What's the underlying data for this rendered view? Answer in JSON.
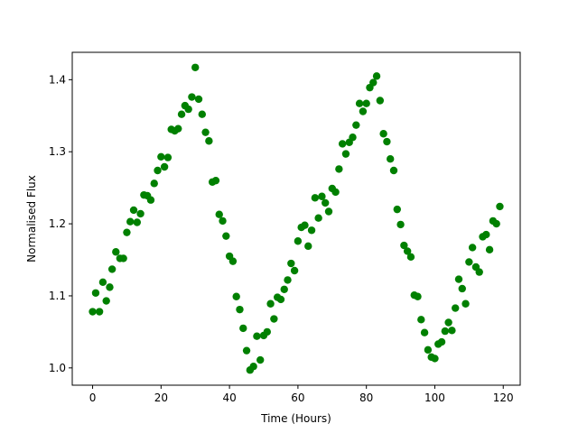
{
  "chart_data": {
    "type": "scatter",
    "title": "",
    "xlabel": "Time (Hours)",
    "ylabel": "Normalised Flux",
    "xlim": [
      -5.95,
      124.95
    ],
    "ylim": [
      0.976,
      1.438
    ],
    "xticks": [
      0,
      20,
      40,
      60,
      80,
      100,
      120
    ],
    "yticks": [
      1.0,
      1.1,
      1.2,
      1.3,
      1.4
    ],
    "ytick_labels": [
      "1.0",
      "1.1",
      "1.2",
      "1.3",
      "1.4"
    ],
    "grid": false,
    "marker_color": "#008000",
    "series": [
      {
        "points": [
          [
            0.0,
            1.078
          ],
          [
            0.9,
            1.104
          ],
          [
            2.0,
            1.078
          ],
          [
            3.0,
            1.119
          ],
          [
            4.0,
            1.093
          ],
          [
            5.0,
            1.112
          ],
          [
            5.7,
            1.137
          ],
          [
            6.8,
            1.161
          ],
          [
            8.0,
            1.152
          ],
          [
            9.0,
            1.152
          ],
          [
            10.0,
            1.188
          ],
          [
            11.0,
            1.203
          ],
          [
            12.0,
            1.219
          ],
          [
            13.0,
            1.202
          ],
          [
            14.0,
            1.214
          ],
          [
            15.0,
            1.24
          ],
          [
            16.0,
            1.239
          ],
          [
            17.0,
            1.233
          ],
          [
            18.0,
            1.256
          ],
          [
            19.0,
            1.274
          ],
          [
            20.0,
            1.293
          ],
          [
            21.0,
            1.279
          ],
          [
            22.0,
            1.292
          ],
          [
            23.0,
            1.331
          ],
          [
            24.0,
            1.329
          ],
          [
            25.0,
            1.332
          ],
          [
            26.0,
            1.352
          ],
          [
            27.0,
            1.364
          ],
          [
            28.0,
            1.359
          ],
          [
            29.0,
            1.376
          ],
          [
            30.0,
            1.417
          ],
          [
            31.0,
            1.373
          ],
          [
            32.0,
            1.352
          ],
          [
            33.0,
            1.327
          ],
          [
            34.0,
            1.315
          ],
          [
            35.0,
            1.258
          ],
          [
            36.0,
            1.26
          ],
          [
            37.0,
            1.213
          ],
          [
            38.0,
            1.204
          ],
          [
            39.0,
            1.183
          ],
          [
            40.0,
            1.155
          ],
          [
            41.0,
            1.148
          ],
          [
            42.0,
            1.099
          ],
          [
            43.0,
            1.081
          ],
          [
            44.0,
            1.055
          ],
          [
            45.0,
            1.024
          ],
          [
            46.0,
            0.997
          ],
          [
            47.0,
            1.002
          ],
          [
            48.0,
            1.044
          ],
          [
            49.0,
            1.011
          ],
          [
            50.0,
            1.045
          ],
          [
            51.0,
            1.05
          ],
          [
            52.0,
            1.089
          ],
          [
            53.0,
            1.068
          ],
          [
            54.0,
            1.098
          ],
          [
            55.0,
            1.095
          ],
          [
            56.0,
            1.109
          ],
          [
            57.0,
            1.122
          ],
          [
            58.0,
            1.145
          ],
          [
            59.0,
            1.135
          ],
          [
            60.0,
            1.176
          ],
          [
            61.0,
            1.195
          ],
          [
            62.0,
            1.198
          ],
          [
            63.0,
            1.169
          ],
          [
            64.0,
            1.191
          ],
          [
            65.0,
            1.236
          ],
          [
            66.0,
            1.208
          ],
          [
            67.0,
            1.238
          ],
          [
            68.0,
            1.229
          ],
          [
            69.0,
            1.217
          ],
          [
            70.0,
            1.249
          ],
          [
            71.0,
            1.244
          ],
          [
            72.0,
            1.276
          ],
          [
            73.0,
            1.311
          ],
          [
            74.0,
            1.297
          ],
          [
            75.0,
            1.313
          ],
          [
            76.0,
            1.32
          ],
          [
            77.0,
            1.337
          ],
          [
            78.0,
            1.367
          ],
          [
            79.0,
            1.356
          ],
          [
            80.0,
            1.367
          ],
          [
            81.0,
            1.389
          ],
          [
            82.0,
            1.396
          ],
          [
            83.0,
            1.405
          ],
          [
            84.0,
            1.371
          ],
          [
            85.0,
            1.325
          ],
          [
            86.0,
            1.314
          ],
          [
            87.0,
            1.29
          ],
          [
            88.0,
            1.274
          ],
          [
            89.0,
            1.22
          ],
          [
            90.0,
            1.199
          ],
          [
            91.0,
            1.17
          ],
          [
            92.0,
            1.162
          ],
          [
            93.0,
            1.154
          ],
          [
            94.0,
            1.101
          ],
          [
            95.0,
            1.099
          ],
          [
            96.0,
            1.067
          ],
          [
            97.0,
            1.049
          ],
          [
            98.0,
            1.025
          ],
          [
            99.0,
            1.015
          ],
          [
            100.0,
            1.013
          ],
          [
            101.0,
            1.033
          ],
          [
            102.0,
            1.036
          ],
          [
            103.0,
            1.051
          ],
          [
            104.0,
            1.063
          ],
          [
            105.0,
            1.052
          ],
          [
            106.0,
            1.083
          ],
          [
            107.0,
            1.123
          ],
          [
            108.0,
            1.11
          ],
          [
            109.0,
            1.089
          ],
          [
            110.0,
            1.147
          ],
          [
            111.0,
            1.167
          ],
          [
            112.0,
            1.14
          ],
          [
            113.0,
            1.133
          ],
          [
            114.0,
            1.182
          ],
          [
            115.0,
            1.185
          ],
          [
            116.0,
            1.164
          ],
          [
            117.0,
            1.204
          ],
          [
            118.0,
            1.2
          ],
          [
            119.0,
            1.224
          ]
        ]
      }
    ]
  }
}
